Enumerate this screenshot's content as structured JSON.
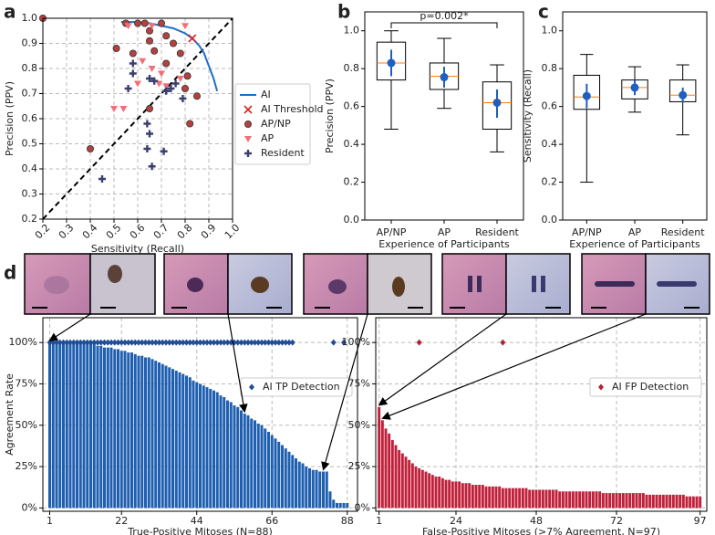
{
  "chart_data": [
    {
      "type": "scatter",
      "panel_label": "a",
      "xlabel": "Sensitivity (Recall)",
      "ylabel": "Precision (PPV)",
      "xlim": [
        0.2,
        1.0
      ],
      "ylim": [
        0.2,
        1.0
      ],
      "xticks": [
        0.2,
        0.3,
        0.4,
        0.5,
        0.6,
        0.7,
        0.8,
        0.9,
        {
          "value": 1,
          "label": "1.0"
        }
      ],
      "yticks": [
        0.2,
        0.3,
        0.4,
        0.5,
        0.6,
        0.7,
        0.8,
        0.9,
        {
          "value": 1,
          "label": "1.0"
        }
      ],
      "grid": true,
      "diagonal": true,
      "legend": "right",
      "series": [
        {
          "name": "AI",
          "marker": "line",
          "color": "#1f6fc5",
          "x": [
            0.53,
            0.6,
            0.65,
            0.7,
            0.75,
            0.8,
            0.83,
            0.86,
            0.88,
            0.9,
            0.92,
            0.935
          ],
          "values": [
            0.985,
            0.985,
            0.98,
            0.97,
            0.96,
            0.94,
            0.92,
            0.89,
            0.86,
            0.81,
            0.76,
            0.71
          ]
        },
        {
          "name": "AI Threshold",
          "marker": "x",
          "color": "#d62728",
          "x": [
            0.83
          ],
          "values": [
            0.92
          ]
        },
        {
          "name": "AP/NP",
          "marker": "circle",
          "color": "#b5413f",
          "x": [
            0.2,
            0.51,
            0.55,
            0.6,
            0.63,
            0.65,
            0.65,
            0.7,
            0.72,
            0.58,
            0.67,
            0.72,
            0.75,
            0.78,
            0.81,
            0.8,
            0.85,
            0.82,
            0.4,
            0.65
          ],
          "values": [
            1.0,
            0.88,
            0.98,
            0.98,
            0.98,
            0.95,
            0.91,
            0.98,
            0.93,
            0.86,
            0.87,
            0.82,
            0.9,
            0.86,
            0.77,
            0.72,
            0.69,
            0.58,
            0.48,
            0.64
          ]
        },
        {
          "name": "AP",
          "marker": "triangle",
          "color": "#f0707a",
          "x": [
            0.56,
            0.66,
            0.8,
            0.62,
            0.66,
            0.7,
            0.69,
            0.78,
            0.6,
            0.5,
            0.54,
            0.72
          ],
          "values": [
            0.97,
            0.97,
            0.97,
            0.83,
            0.8,
            0.78,
            0.74,
            0.76,
            0.74,
            0.64,
            0.64,
            0.73
          ]
        },
        {
          "name": "Resident",
          "marker": "plus",
          "color": "#3b3f6e",
          "x": [
            0.45,
            0.56,
            0.58,
            0.58,
            0.65,
            0.67,
            0.72,
            0.74,
            0.76,
            0.79,
            0.64,
            0.65,
            0.64,
            0.71,
            0.66
          ],
          "values": [
            0.36,
            0.72,
            0.82,
            0.78,
            0.76,
            0.75,
            0.71,
            0.72,
            0.74,
            0.68,
            0.58,
            0.54,
            0.48,
            0.47,
            0.41
          ]
        }
      ]
    },
    {
      "type": "box",
      "panel_label": "b",
      "xlabel": "Experience of Participants",
      "ylabel": "Precision (PPV)",
      "annotation": "p=0.002*",
      "categories": [
        "AP/NP",
        "AP",
        "Resident"
      ],
      "ylim": [
        0,
        1.1
      ],
      "yticks": [
        {
          "value": 0,
          "label": "0.0"
        },
        0.2,
        0.4,
        0.6,
        0.8,
        {
          "value": 1,
          "label": "1.0"
        }
      ],
      "box_color": "#000000",
      "median_color": "#ff7f0e",
      "mean_color": "#1f5fbf",
      "boxes": [
        {
          "whisker_low": 0.48,
          "q1": 0.74,
          "median": 0.83,
          "q3": 0.94,
          "whisker_high": 1.0,
          "mean": 0.83,
          "ci_low": 0.76,
          "ci_high": 0.9
        },
        {
          "whisker_low": 0.59,
          "q1": 0.69,
          "median": 0.76,
          "q3": 0.83,
          "whisker_high": 0.96,
          "mean": 0.755,
          "ci_low": 0.7,
          "ci_high": 0.81
        },
        {
          "whisker_low": 0.36,
          "q1": 0.48,
          "median": 0.62,
          "q3": 0.73,
          "whisker_high": 0.82,
          "mean": 0.62,
          "ci_low": 0.54,
          "ci_high": 0.69
        }
      ]
    },
    {
      "type": "box",
      "panel_label": "c",
      "xlabel": "Experience of Participants",
      "ylabel": "Sensitivity (Recall)",
      "categories": [
        "AP/NP",
        "AP",
        "Resident"
      ],
      "ylim": [
        0,
        1.1
      ],
      "yticks": [
        {
          "value": 0,
          "label": "0.0"
        },
        0.2,
        0.4,
        0.6,
        0.8,
        {
          "value": 1,
          "label": "1.0"
        }
      ],
      "box_color": "#000000",
      "median_color": "#ff7f0e",
      "mean_color": "#1f5fbf",
      "boxes": [
        {
          "whisker_low": 0.2,
          "q1": 0.585,
          "median": 0.65,
          "q3": 0.765,
          "whisker_high": 0.875,
          "mean": 0.655,
          "ci_low": 0.59,
          "ci_high": 0.72
        },
        {
          "whisker_low": 0.57,
          "q1": 0.64,
          "median": 0.7,
          "q3": 0.74,
          "whisker_high": 0.81,
          "mean": 0.7,
          "ci_low": 0.66,
          "ci_high": 0.74
        },
        {
          "whisker_low": 0.45,
          "q1": 0.625,
          "median": 0.66,
          "q3": 0.74,
          "whisker_high": 0.82,
          "mean": 0.66,
          "ci_low": 0.62,
          "ci_high": 0.7
        }
      ]
    },
    {
      "type": "bar",
      "panel_label": "d",
      "xlabel": "True-Positive Mitoses (N=88)",
      "ylabel": "Agreement Rate",
      "color": "#1f5fb0",
      "x": [
        1,
        2,
        3,
        4,
        5,
        6,
        7,
        8,
        9,
        10,
        11,
        12,
        13,
        14,
        15,
        16,
        17,
        18,
        19,
        20,
        21,
        22,
        23,
        24,
        25,
        26,
        27,
        28,
        29,
        30,
        31,
        32,
        33,
        34,
        35,
        36,
        37,
        38,
        39,
        40,
        41,
        42,
        43,
        44,
        45,
        46,
        47,
        48,
        49,
        50,
        51,
        52,
        53,
        54,
        55,
        56,
        57,
        58,
        59,
        60,
        61,
        62,
        63,
        64,
        65,
        66,
        67,
        68,
        69,
        70,
        71,
        72,
        73,
        74,
        75,
        76,
        77,
        78,
        79,
        80,
        81,
        82,
        83,
        84,
        85,
        86,
        87,
        88
      ],
      "values": [
        100,
        100,
        100,
        100,
        100,
        100,
        100,
        100,
        100,
        100,
        100,
        100,
        100,
        100,
        98,
        98,
        97,
        97,
        97,
        96,
        96,
        95,
        95,
        94,
        94,
        93,
        92,
        92,
        91,
        91,
        90,
        89,
        88,
        87,
        86,
        85,
        84,
        83,
        82,
        81,
        80,
        79,
        77,
        76,
        75,
        74,
        73,
        72,
        71,
        70,
        68,
        67,
        65,
        64,
        62,
        61,
        59,
        57,
        56,
        54,
        53,
        51,
        50,
        48,
        46,
        44,
        42,
        40,
        38,
        36,
        34,
        32,
        30,
        28,
        27,
        25,
        24,
        23,
        23,
        22,
        22,
        22,
        10,
        5,
        3,
        3,
        3,
        3
      ],
      "xlim": [
        -1,
        91
      ],
      "xticks": [
        1,
        22,
        44,
        66,
        88
      ],
      "ylim": [
        -2,
        115
      ],
      "yticks": [
        {
          "value": 0,
          "label": "0%"
        },
        {
          "value": 25,
          "label": "25%"
        },
        {
          "value": 50,
          "label": "50%"
        },
        {
          "value": 75,
          "label": "75%"
        },
        {
          "value": 100,
          "label": "100%"
        }
      ],
      "grid": true,
      "legend": "upper right",
      "series": [
        {
          "name": "AI TP Detection",
          "marker": "diamond",
          "color": "#1f4e96",
          "x": [
            1,
            2,
            3,
            4,
            5,
            6,
            7,
            8,
            9,
            10,
            11,
            12,
            13,
            14,
            15,
            16,
            17,
            18,
            19,
            20,
            21,
            22,
            23,
            24,
            25,
            26,
            27,
            28,
            29,
            30,
            31,
            32,
            33,
            34,
            35,
            36,
            37,
            38,
            39,
            40,
            41,
            42,
            43,
            44,
            45,
            46,
            47,
            48,
            49,
            50,
            51,
            52,
            53,
            54,
            55,
            56,
            57,
            58,
            59,
            60,
            61,
            62,
            63,
            64,
            65,
            66,
            67,
            68,
            69,
            70,
            71,
            72,
            84,
            87
          ],
          "values": [
            100,
            100,
            100,
            100,
            100,
            100,
            100,
            100,
            100,
            100,
            100,
            100,
            100,
            100,
            100,
            100,
            100,
            100,
            100,
            100,
            100,
            100,
            100,
            100,
            100,
            100,
            100,
            100,
            100,
            100,
            100,
            100,
            100,
            100,
            100,
            100,
            100,
            100,
            100,
            100,
            100,
            100,
            100,
            100,
            100,
            100,
            100,
            100,
            100,
            100,
            100,
            100,
            100,
            100,
            100,
            100,
            100,
            100,
            100,
            100,
            100,
            100,
            100,
            100,
            100,
            100,
            100,
            100,
            100,
            100,
            100,
            100,
            100,
            100
          ]
        }
      ]
    },
    {
      "type": "bar",
      "xlabel": "False-Positive Mitoses (>7% Agreement, N=97)",
      "color": "#c0203a",
      "x": [
        1,
        2,
        3,
        4,
        5,
        6,
        7,
        8,
        9,
        10,
        11,
        12,
        13,
        14,
        15,
        16,
        17,
        18,
        19,
        20,
        21,
        22,
        23,
        24,
        25,
        26,
        27,
        28,
        29,
        30,
        31,
        32,
        33,
        34,
        35,
        36,
        37,
        38,
        39,
        40,
        41,
        42,
        43,
        44,
        45,
        46,
        47,
        48,
        49,
        50,
        51,
        52,
        53,
        54,
        55,
        56,
        57,
        58,
        59,
        60,
        61,
        62,
        63,
        64,
        65,
        66,
        67,
        68,
        69,
        70,
        71,
        72,
        73,
        74,
        75,
        76,
        77,
        78,
        79,
        80,
        81,
        82,
        83,
        84,
        85,
        86,
        87,
        88,
        89,
        90,
        91,
        92,
        93,
        94,
        95,
        96,
        97
      ],
      "values": [
        61,
        53,
        48,
        45,
        41,
        38,
        35,
        33,
        31,
        29,
        27,
        25,
        24,
        23,
        22,
        21,
        20,
        19,
        19,
        18,
        17,
        17,
        16,
        16,
        16,
        15,
        15,
        15,
        14,
        14,
        14,
        14,
        13,
        13,
        13,
        13,
        13,
        12,
        12,
        12,
        12,
        12,
        12,
        12,
        12,
        11,
        11,
        11,
        11,
        11,
        11,
        11,
        11,
        11,
        10,
        10,
        10,
        10,
        10,
        10,
        10,
        10,
        10,
        10,
        10,
        10,
        10,
        9,
        9,
        9,
        9,
        9,
        9,
        9,
        9,
        9,
        9,
        9,
        9,
        9,
        8,
        8,
        8,
        8,
        8,
        8,
        8,
        8,
        8,
        8,
        8,
        8,
        7,
        7,
        7,
        7,
        7
      ],
      "xlim": [
        0,
        99
      ],
      "xticks": [
        1,
        24,
        48,
        72,
        97
      ],
      "ylim": [
        -2,
        115
      ],
      "yticks": [
        {
          "value": 0,
          "label": "0%"
        },
        {
          "value": 25,
          "label": "25%"
        },
        {
          "value": 50,
          "label": "50%"
        },
        {
          "value": 75,
          "label": "75%"
        },
        {
          "value": 100,
          "label": "100%"
        }
      ],
      "grid": true,
      "legend": "upper right",
      "series": [
        {
          "name": "AI FP Detection",
          "marker": "diamond",
          "color": "#b22234",
          "x": [
            13,
            38
          ],
          "values": [
            100,
            100
          ]
        }
      ]
    }
  ]
}
